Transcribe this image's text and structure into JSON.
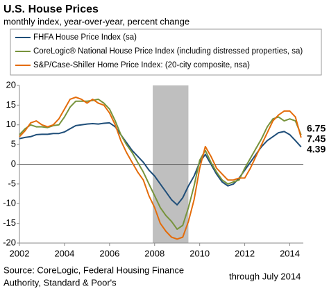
{
  "chart_data": {
    "type": "line",
    "title": "U.S. House Prices",
    "subtitle": "monthly index, year-over-year, percent change",
    "x": [
      2002,
      2002.25,
      2002.5,
      2002.75,
      2003,
      2003.25,
      2003.5,
      2003.75,
      2004,
      2004.25,
      2004.5,
      2004.75,
      2005,
      2005.25,
      2005.5,
      2005.75,
      2006,
      2006.25,
      2006.5,
      2006.75,
      2007,
      2007.25,
      2007.5,
      2007.75,
      2008,
      2008.25,
      2008.5,
      2008.75,
      2009,
      2009.25,
      2009.5,
      2009.75,
      2010,
      2010.25,
      2010.5,
      2010.75,
      2011,
      2011.25,
      2011.5,
      2011.75,
      2012,
      2012.25,
      2012.5,
      2012.75,
      2013,
      2013.25,
      2013.5,
      2013.75,
      2014,
      2014.25,
      2014.5
    ],
    "series": [
      {
        "name": "FHFA House Price Index (sa)",
        "color": "#1f4e79",
        "values": [
          6.5,
          6.8,
          7.0,
          7.5,
          7.6,
          7.6,
          7.8,
          7.8,
          8.2,
          9.0,
          9.8,
          10.0,
          10.2,
          10.3,
          10.2,
          10.4,
          10.5,
          9.5,
          7.5,
          5.5,
          3.5,
          2.0,
          0.5,
          -1.5,
          -3.0,
          -5.0,
          -7.0,
          -9.0,
          -10.3,
          -8.5,
          -5.5,
          -3.0,
          0.5,
          2.5,
          0,
          -2.5,
          -4.5,
          -5.5,
          -5.0,
          -3.5,
          -1.5,
          0.5,
          2.5,
          4.5,
          6.0,
          7.0,
          8.0,
          8.3,
          7.5,
          6.0,
          4.39
        ]
      },
      {
        "name": "CoreLogic® National House Price Index (including distressed properties, sa)",
        "color": "#77933c",
        "values": [
          7.5,
          9.0,
          10.0,
          9.5,
          9.5,
          9.3,
          9.8,
          10.0,
          12.0,
          14.5,
          16.0,
          16.0,
          16.0,
          16.2,
          16.5,
          15.5,
          14.0,
          11.0,
          7.5,
          5.0,
          3.0,
          0.5,
          -2.0,
          -5.0,
          -8.0,
          -11.0,
          -13.0,
          -14.5,
          -16.5,
          -15.5,
          -11.0,
          -5.5,
          1.0,
          3.5,
          0.5,
          -2.0,
          -4.0,
          -5.0,
          -4.5,
          -4.0,
          -1.0,
          1.5,
          4.0,
          6.5,
          9.5,
          11.5,
          12.0,
          11.0,
          11.5,
          11.0,
          7.45
        ]
      },
      {
        "name": "S&P/Case-Shiller Home Price Index: (20-city composite, nsa)",
        "color": "#e46c0a",
        "values": [
          7.0,
          8.5,
          10.5,
          11.0,
          10.0,
          9.5,
          10.0,
          11.5,
          14.0,
          16.5,
          17.0,
          16.5,
          15.5,
          16.5,
          15.5,
          15.0,
          13.0,
          10.0,
          6.0,
          3.0,
          0.5,
          -2.0,
          -4.0,
          -8.0,
          -11.0,
          -15.0,
          -17.0,
          -18.5,
          -19.0,
          -18.5,
          -14.5,
          -9.0,
          -1.0,
          4.5,
          2.0,
          -1.0,
          -2.5,
          -4.0,
          -4.0,
          -3.5,
          -3.5,
          -1.0,
          2.0,
          5.0,
          8.0,
          11.0,
          12.5,
          13.5,
          13.5,
          12.0,
          6.75
        ]
      }
    ],
    "shade": {
      "x": [
        2007.917,
        2009.5
      ],
      "color": "#bfbfbf"
    },
    "xlim": [
      2002,
      2014.6
    ],
    "xticks": [
      2002,
      2004,
      2006,
      2008,
      2010,
      2012,
      2014
    ],
    "ylim": [
      -20,
      20
    ],
    "yticks": [
      -20,
      -15,
      -10,
      -5,
      0,
      5,
      10,
      15,
      20
    ],
    "grid": false,
    "source": [
      "Source: CoreLogic, Federal Housing Finance",
      "Authority, Standard & Poor's"
    ],
    "note": "through July 2014"
  }
}
